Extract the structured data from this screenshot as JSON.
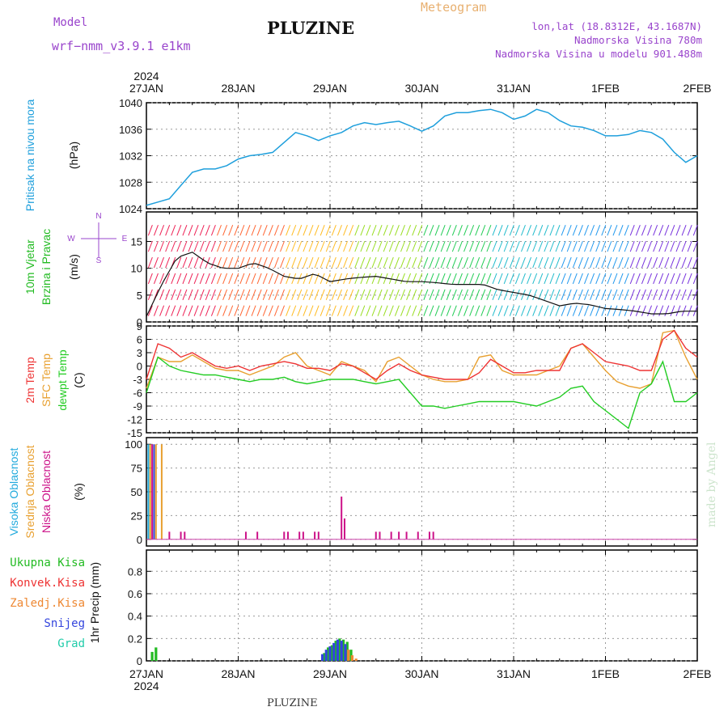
{
  "header": {
    "model_label": "Model",
    "model_value": "wrf−nmm_v3.9.1  e1km",
    "station_title": "PLUZINE",
    "meteogram_label": "Meteogram",
    "lonlat": "lon,lat (18.8312E, 43.1687N)",
    "elevation": "Nadmorska Visina 780m",
    "model_elevation": "Nadmorska Visina u modelu 901.488m"
  },
  "footer": {
    "station": "PLUZINE",
    "credit": "made by Angel"
  },
  "colors": {
    "pressure": "#1e9fdc",
    "temp2m": "#ee3333",
    "sfc_temp": "#e8a030",
    "dewpoint": "#22cc22",
    "cloud_high": "#22aadd",
    "cloud_mid": "#e8a030",
    "cloud_low": "#cc1188",
    "purple": "#9944cc",
    "precip_total": "#22bb22",
    "precip_conv": "#ee3333",
    "precip_frozen": "#ee8833",
    "precip_snow": "#3344dd",
    "precip_graupel": "#22ccaa"
  },
  "chart_data": [
    {
      "type": "line",
      "panel": "pressure",
      "ylabel_main": "Pritisak na nivou mora",
      "units": "(hPa)",
      "ylim": [
        1024,
        1040
      ],
      "yticks": [
        1024,
        1028,
        1032,
        1036,
        1040
      ],
      "x_hours": [
        0,
        3,
        6,
        9,
        12,
        15,
        18,
        21,
        24,
        27,
        30,
        33,
        36,
        39,
        42,
        45,
        48,
        51,
        54,
        57,
        60,
        63,
        66,
        69,
        72,
        75,
        78,
        81,
        84,
        87,
        90,
        93,
        96,
        99,
        102,
        105,
        108,
        111,
        114,
        117,
        120,
        123,
        126,
        129,
        132,
        135,
        138,
        141,
        144
      ],
      "series": [
        {
          "values": [
            1024.5,
            1025,
            1025.5,
            1027.5,
            1029.5,
            1030,
            1030,
            1030.5,
            1031.5,
            1032,
            1032.2,
            1032.5,
            1034,
            1035.5,
            1035,
            1034.3,
            1035,
            1035.5,
            1036.5,
            1037,
            1036.7,
            1037,
            1037.2,
            1036.5,
            1035.7,
            1036.5,
            1038,
            1038.5,
            1038.5,
            1038.8,
            1039,
            1038.5,
            1037.5,
            1038,
            1039,
            1038.5,
            1037.3,
            1036.5,
            1036.3,
            1035.8,
            1035,
            1035,
            1035.2,
            1035.8,
            1035.5,
            1034.5,
            1032.5,
            1031,
            1032
          ]
        }
      ],
      "xticks": [
        "27JAN",
        "28JAN",
        "29JAN",
        "30JAN",
        "31JAN",
        "1FEB",
        "2FEB"
      ],
      "year": "2024"
    },
    {
      "type": "line",
      "panel": "wind",
      "ylabel_main": "10m Vjetar",
      "ylabel_sub": "Brzina i Pravac",
      "units": "(m/s)",
      "ylim": [
        0,
        20
      ],
      "yticks": [
        0,
        5,
        10,
        15
      ],
      "compass_n": "N",
      "compass_s": "S",
      "compass_w": "W",
      "compass_e": "E",
      "x_hours": [
        0,
        4,
        8,
        12,
        16,
        20,
        24,
        28,
        32,
        36,
        40,
        44,
        48,
        52,
        56,
        60,
        64,
        68,
        72,
        76,
        80,
        84,
        88,
        92,
        96,
        100,
        104,
        108,
        112,
        116,
        120,
        124,
        128,
        132,
        136,
        140,
        144
      ],
      "series": [
        {
          "name": "speed",
          "values": [
            1,
            7,
            12,
            13,
            11,
            10,
            10,
            11,
            10,
            8.5,
            8,
            9,
            7.5,
            8,
            8.3,
            8.5,
            8,
            7.5,
            7.5,
            7.3,
            7,
            7,
            7,
            6,
            5.5,
            5,
            4,
            3,
            3.5,
            3.2,
            2.5,
            2.3,
            2,
            1.5,
            1.5,
            2,
            2
          ]
        }
      ]
    },
    {
      "type": "line",
      "panel": "temperature",
      "ylabel_a": "2m Temp",
      "ylabel_b": "SFC Temp",
      "ylabel_c": "dewpt Temp",
      "units": "(C)",
      "ylim": [
        -15,
        9
      ],
      "yticks": [
        -15,
        -12,
        -9,
        -6,
        -3,
        0,
        3,
        6,
        9
      ],
      "x_hours": [
        0,
        3,
        6,
        9,
        12,
        15,
        18,
        21,
        24,
        27,
        30,
        33,
        36,
        39,
        42,
        45,
        48,
        51,
        54,
        57,
        60,
        63,
        66,
        69,
        72,
        75,
        78,
        81,
        84,
        87,
        90,
        93,
        96,
        99,
        102,
        105,
        108,
        111,
        114,
        117,
        120,
        123,
        126,
        129,
        132,
        135,
        138,
        141,
        144
      ],
      "series": [
        {
          "name": "2m",
          "values": [
            -3,
            5,
            4,
            2,
            3,
            1.5,
            0,
            -0.5,
            0,
            -1,
            0,
            0.5,
            1,
            0.5,
            -0.5,
            -0.5,
            -1,
            0.5,
            0,
            -1.5,
            -3,
            -1,
            0.5,
            -1,
            -2,
            -2.5,
            -3,
            -3,
            -3,
            -1.5,
            1.5,
            0,
            -1.5,
            -1.5,
            -1,
            -1,
            -1,
            4,
            5,
            3,
            1,
            0.5,
            0,
            -1,
            -1,
            6,
            8,
            4,
            2
          ]
        },
        {
          "name": "sfc",
          "values": [
            -5,
            2,
            1,
            1,
            2.5,
            1,
            -0.5,
            -1,
            -1,
            -2,
            -1,
            0,
            2,
            3,
            0,
            -1,
            -2,
            1,
            0,
            -1,
            -3.5,
            1,
            2,
            0,
            -2,
            -3,
            -3.5,
            -3.5,
            -3,
            2,
            2.5,
            -1,
            -2,
            -2,
            -2,
            -1,
            0,
            4,
            5,
            2,
            -1,
            -3.5,
            -4.5,
            -5,
            -4,
            7.5,
            8,
            2,
            -3
          ]
        },
        {
          "name": "dewpoint",
          "values": [
            -6,
            2,
            0,
            -1,
            -1.5,
            -2,
            -2,
            -2.5,
            -3,
            -3.5,
            -3,
            -3,
            -2.5,
            -3.5,
            -4,
            -3.5,
            -3,
            -3,
            -3,
            -3.5,
            -4,
            -3.5,
            -3,
            -6,
            -9,
            -9,
            -9.5,
            -9,
            -8.5,
            -8,
            -8,
            -8,
            -8,
            -8.5,
            -9,
            -8,
            -7,
            -5,
            -4.5,
            -8,
            -10,
            -12,
            -14,
            -6,
            -4,
            1,
            -8,
            -8,
            -6
          ]
        }
      ]
    },
    {
      "type": "bar",
      "panel": "cloud",
      "ylabel_a": "Visoka Oblacnost",
      "ylabel_b": "Srednja Oblacnost",
      "ylabel_c": "Niska Oblacnost",
      "units": "(%)",
      "ylim": [
        0,
        100
      ],
      "yticks": [
        0,
        25,
        50,
        75,
        100
      ],
      "series": [
        {
          "name": "high",
          "x_hours": [
            0.5,
            2.0
          ],
          "values": [
            100,
            100
          ]
        },
        {
          "name": "mid",
          "x_hours": [
            1.0,
            2.5,
            4.0
          ],
          "values": [
            100,
            100,
            100
          ]
        },
        {
          "name": "low",
          "x_hours": [
            1.5,
            6,
            9,
            10,
            26,
            29,
            36,
            37,
            40,
            41,
            44,
            45,
            51,
            51.8,
            60,
            61,
            64,
            66,
            68,
            71,
            74,
            75
          ],
          "values": [
            100,
            8,
            8,
            8,
            8,
            8,
            8,
            8,
            8,
            8,
            8,
            8,
            45,
            22,
            8,
            8,
            8,
            8,
            8,
            8,
            8,
            8
          ]
        }
      ]
    },
    {
      "type": "bar",
      "panel": "precip",
      "legend_total": "Ukupna Kisa",
      "legend_conv": "Konvek.Kisa",
      "legend_frozen": "Zaledj.Kisa",
      "legend_snow": "Snijeg",
      "legend_graupel": "Grad",
      "ylabel": "1hr Precip (mm)",
      "ylim": [
        0,
        1
      ],
      "yticks": [
        0,
        0.2,
        0.4,
        0.6,
        0.8
      ],
      "series": [
        {
          "name": "total",
          "x_hours": [
            1.5,
            2.5,
            46.5,
            47.5,
            48.5,
            49.5,
            50.5,
            51.5,
            52.5,
            53.5
          ],
          "values": [
            0.08,
            0.12,
            0.07,
            0.12,
            0.14,
            0.18,
            0.2,
            0.19,
            0.17,
            0.1
          ]
        },
        {
          "name": "snow",
          "x_hours": [
            46,
            47,
            48,
            49,
            50,
            51,
            52
          ],
          "values": [
            0.06,
            0.1,
            0.13,
            0.16,
            0.19,
            0.18,
            0.15
          ]
        },
        {
          "name": "frozen",
          "x_hours": [
            52.8,
            53.8,
            54.8
          ],
          "values": [
            0.1,
            0.05,
            0.02
          ]
        }
      ]
    }
  ]
}
